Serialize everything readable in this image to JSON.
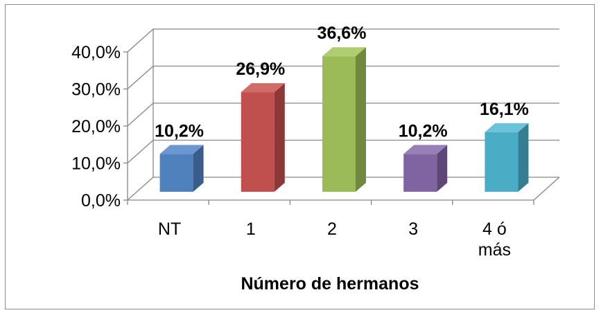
{
  "chart_data": {
    "type": "bar",
    "style": "3d-column",
    "title": "",
    "xlabel": "Número de hermanos",
    "ylabel": "",
    "categories": [
      "NT",
      "1",
      "2",
      "3",
      "4 ó más"
    ],
    "category_lines": [
      [
        "NT"
      ],
      [
        "1"
      ],
      [
        "2"
      ],
      [
        "3"
      ],
      [
        "4 ó",
        "más"
      ]
    ],
    "values": [
      10.2,
      26.9,
      36.6,
      10.2,
      16.1
    ],
    "data_labels": [
      "10,2%",
      "26,9%",
      "36,6%",
      "10,2%",
      "16,1%"
    ],
    "yticks": [
      0,
      10,
      20,
      30,
      40
    ],
    "ytick_labels": [
      "0,0%",
      "10,0%",
      "20,0%",
      "30,0%",
      "40,0%"
    ],
    "ylim": [
      0,
      40
    ],
    "grid": true,
    "legend": "none",
    "colors": [
      "#4f81bd",
      "#c0504d",
      "#9bbb59",
      "#8064a2",
      "#4bacc6"
    ],
    "side_colors": [
      "#385d8a",
      "#8c3836",
      "#71893f",
      "#5c4776",
      "#357d91"
    ],
    "top_colors": [
      "#6b96cf",
      "#d16b68",
      "#b0cd72",
      "#987fb8",
      "#6cc3d9"
    ],
    "gridline_color": "#868686"
  }
}
